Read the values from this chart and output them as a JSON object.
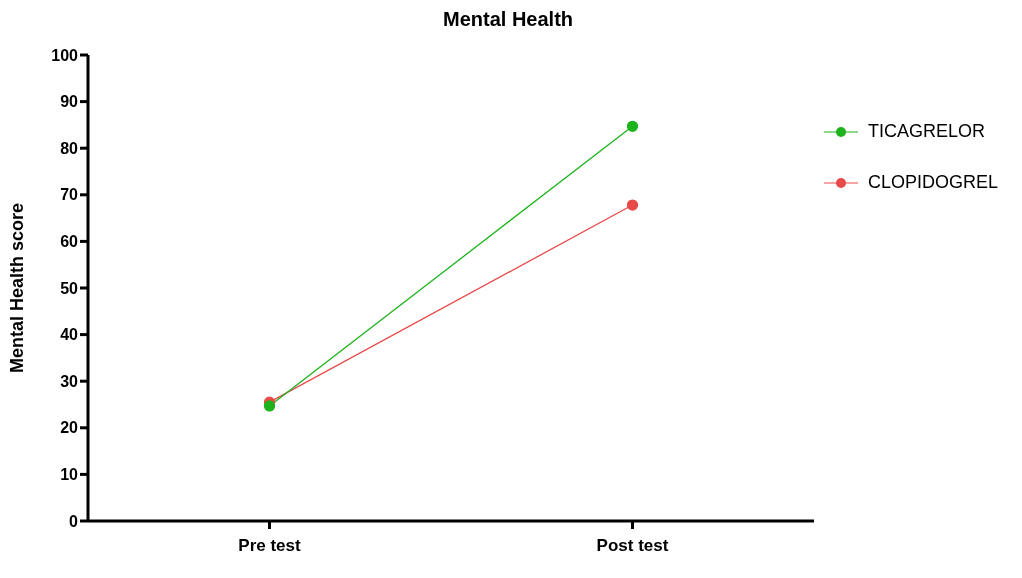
{
  "chart_data": {
    "type": "line",
    "title": "Mental Health",
    "ylabel": "Mental Health score",
    "categories": [
      "Pre test",
      "Post test"
    ],
    "series": [
      {
        "name": "TICAGRELOR",
        "color": "#1db31d",
        "values": [
          24.7,
          84.7
        ]
      },
      {
        "name": "CLOPIDOGREL",
        "color": "#e84a4a",
        "values": [
          25.5,
          67.8
        ]
      }
    ],
    "ylim": [
      0,
      100
    ],
    "yticks": [
      0,
      10,
      20,
      30,
      40,
      50,
      60,
      70,
      80,
      90,
      100
    ],
    "grid": false,
    "legend": "top right",
    "marker": "circle",
    "line_style": "solid"
  }
}
